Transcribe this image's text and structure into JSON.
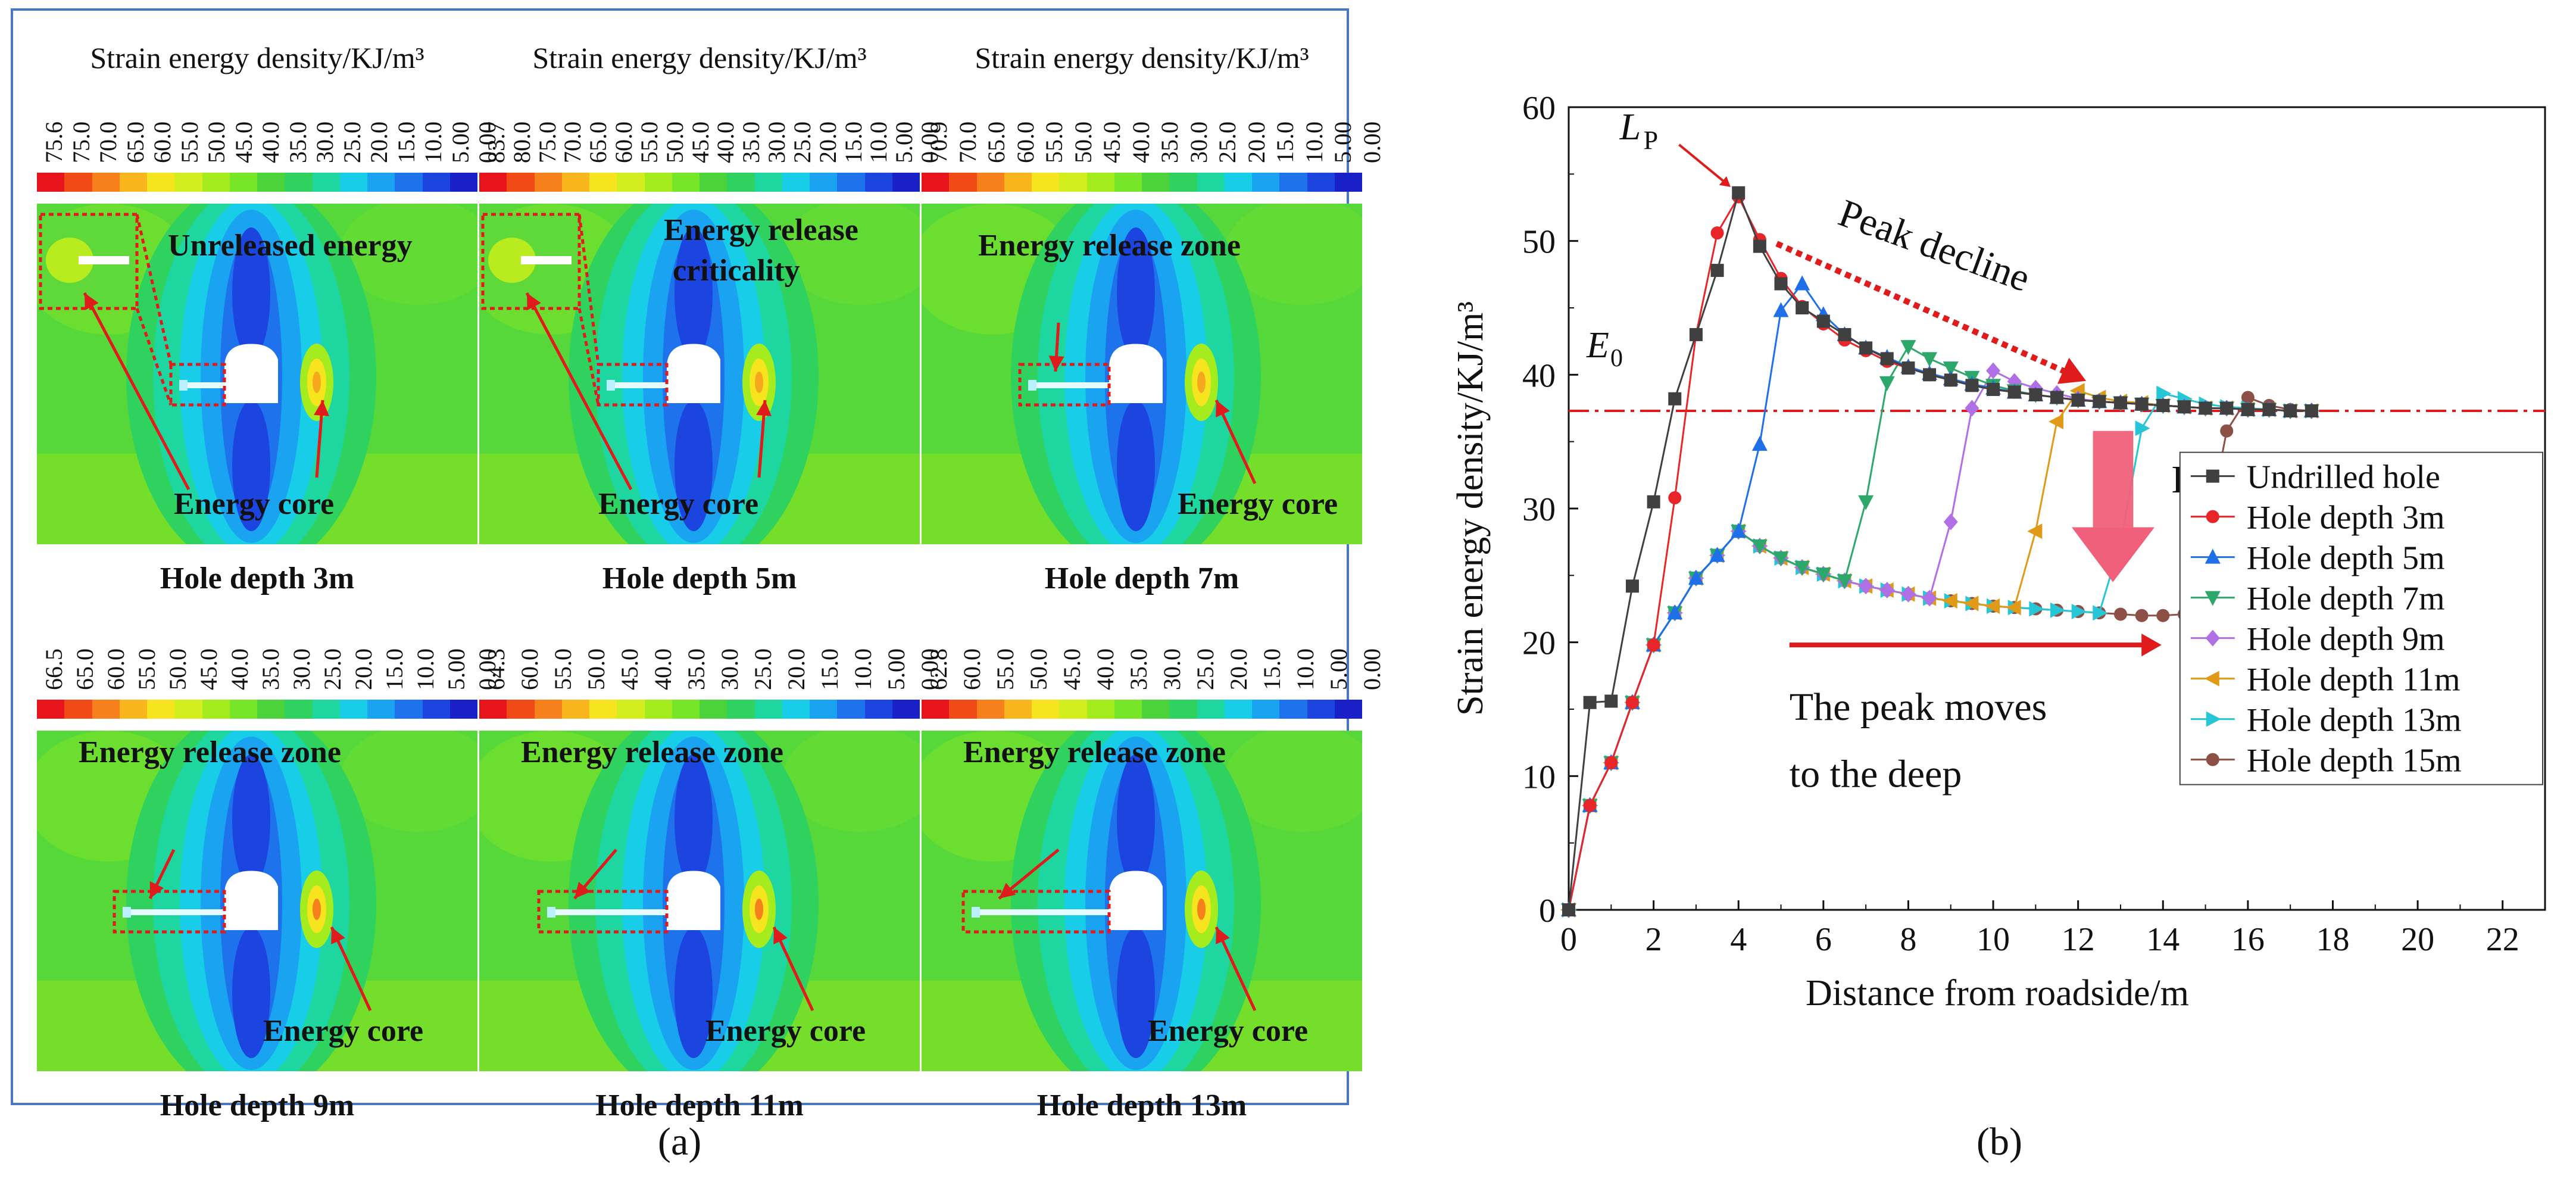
{
  "figure": {
    "panel_a_label": "(a)",
    "panel_b_label": "(b)"
  },
  "colors": {
    "frame_blue": "#4a78c0",
    "colorbar": [
      "#e8141c",
      "#f04a16",
      "#f5801c",
      "#f8b51e",
      "#f6e41e",
      "#d2ee1e",
      "#a5ec1e",
      "#78e628",
      "#4cd23a",
      "#2fd25e",
      "#1dd6a0",
      "#18cde8",
      "#1aa3f0",
      "#1e72ec",
      "#1c45e0",
      "#1a20c8"
    ],
    "series": [
      "#404040",
      "#e8262a",
      "#1f6fe8",
      "#2ea86a",
      "#b16fe6",
      "#e09a18",
      "#26c6d6",
      "#8c5046"
    ]
  },
  "panels": [
    {
      "colorbar_title": "Strain energy density/KJ/m³",
      "ticks": [
        "75.6",
        "75.0",
        "70.0",
        "65.0",
        "60.0",
        "55.0",
        "50.0",
        "45.0",
        "40.0",
        "35.0",
        "30.0",
        "25.0",
        "20.0",
        "15.0",
        "10.0",
        "5.00",
        "0.00"
      ],
      "annotation": "Unreleased energy",
      "core_label": "Energy core",
      "caption": "Hole depth 3m",
      "hole_depth_m": 3
    },
    {
      "colorbar_title": "Strain energy density/KJ/m³",
      "ticks": [
        "83.7",
        "80.0",
        "75.0",
        "70.0",
        "65.0",
        "60.0",
        "55.0",
        "50.0",
        "45.0",
        "40.0",
        "35.0",
        "30.0",
        "25.0",
        "20.0",
        "15.0",
        "10.0",
        "5.00",
        "0.00"
      ],
      "annotation": "Energy release",
      "annotation2": "criticality",
      "core_label": "Energy core",
      "caption": "Hole depth 5m",
      "hole_depth_m": 5
    },
    {
      "colorbar_title": "Strain energy density/KJ/m³",
      "ticks": [
        "70.9",
        "70.0",
        "65.0",
        "60.0",
        "55.0",
        "50.0",
        "45.0",
        "40.0",
        "35.0",
        "30.0",
        "25.0",
        "20.0",
        "15.0",
        "10.0",
        "5.00",
        "0.00"
      ],
      "annotation": "Energy release zone",
      "core_label": "Energy core",
      "caption": "Hole depth 7m",
      "hole_depth_m": 7
    },
    {
      "colorbar_title": "",
      "ticks": [
        "66.5",
        "65.0",
        "60.0",
        "55.0",
        "50.0",
        "45.0",
        "40.0",
        "35.0",
        "30.0",
        "25.0",
        "20.0",
        "15.0",
        "10.0",
        "5.00",
        "0.00"
      ],
      "annotation": "Energy release zone",
      "core_label": "Energy core",
      "caption": "Hole depth 9m",
      "hole_depth_m": 9
    },
    {
      "colorbar_title": "",
      "ticks": [
        "64.3",
        "60.0",
        "55.0",
        "50.0",
        "45.0",
        "40.0",
        "35.0",
        "30.0",
        "25.0",
        "20.0",
        "15.0",
        "10.0",
        "5.00",
        "0.00"
      ],
      "annotation": "Energy release zone",
      "core_label": "Energy core",
      "caption": "Hole depth 11m",
      "hole_depth_m": 11
    },
    {
      "colorbar_title": "",
      "ticks": [
        "62.8",
        "60.0",
        "55.0",
        "50.0",
        "45.0",
        "40.0",
        "35.0",
        "30.0",
        "25.0",
        "20.0",
        "15.0",
        "10.0",
        "5.00",
        "0.00"
      ],
      "annotation": "Energy release zone",
      "core_label": "Energy core",
      "caption": "Hole depth 13m",
      "hole_depth_m": 13
    }
  ],
  "chart_data": {
    "type": "line",
    "title": "",
    "xlabel": "Distance from roadside/m",
    "ylabel": "Strain energy density/KJ/m³",
    "xlim": [
      0,
      23
    ],
    "ylim": [
      0,
      60
    ],
    "xticks": [
      0,
      2,
      4,
      6,
      8,
      10,
      12,
      14,
      16,
      18,
      20,
      22
    ],
    "yticks": [
      0,
      10,
      20,
      30,
      40,
      50,
      60
    ],
    "legend_position": "bottom-right",
    "reference_line": {
      "label": "E",
      "subscript": "0",
      "y": 37.3
    },
    "peak_label": {
      "label": "L",
      "subscript": "P",
      "x": 4.0,
      "y": 53.6
    },
    "annotations": {
      "peak_decline": "Peak decline",
      "energy_release": "Energy release",
      "peak_moves_1": "The peak moves",
      "peak_moves_2": "to the deep"
    },
    "series": [
      {
        "name": "Undrilled hole",
        "marker": "square",
        "x": [
          0,
          0.5,
          1,
          1.5,
          2,
          2.5,
          3,
          3.5,
          4,
          4.5,
          5,
          5.5,
          6,
          6.5,
          7,
          7.5,
          8,
          8.5,
          9,
          9.5,
          10,
          10.5,
          11,
          11.5,
          12,
          12.5,
          13,
          13.5,
          14,
          14.5,
          15,
          15.5,
          16,
          16.5,
          17,
          17.5
        ],
        "y": [
          0,
          15.5,
          15.6,
          24.2,
          30.5,
          38.2,
          43,
          47.8,
          53.6,
          49.6,
          46.8,
          45,
          44,
          43,
          42,
          41.2,
          40.5,
          40,
          39.6,
          39.2,
          38.9,
          38.7,
          38.5,
          38.3,
          38.1,
          38,
          37.9,
          37.8,
          37.7,
          37.6,
          37.5,
          37.5,
          37.4,
          37.4,
          37.3,
          37.3
        ]
      },
      {
        "name": "Hole depth 3m",
        "marker": "circle",
        "x": [
          0,
          0.5,
          1,
          1.5,
          2,
          2.5,
          3,
          3.5,
          4,
          4.5,
          5,
          5.5,
          6,
          6.5,
          7,
          7.5,
          8,
          8.5,
          9,
          9.5,
          10,
          10.5,
          11,
          11.5,
          12,
          12.5,
          13,
          13.5,
          14,
          14.5,
          15,
          15.5,
          16,
          16.5,
          17,
          17.5
        ],
        "y": [
          0,
          7.8,
          11,
          15.5,
          19.8,
          30.8,
          43,
          50.6,
          53.3,
          50.1,
          47.2,
          45.1,
          43.8,
          42.6,
          41.8,
          41,
          40.5,
          40,
          39.6,
          39.2,
          38.9,
          38.7,
          38.5,
          38.3,
          38.1,
          38,
          37.9,
          37.8,
          37.7,
          37.6,
          37.5,
          37.5,
          37.4,
          37.4,
          37.3,
          37.3
        ]
      },
      {
        "name": "Hole depth 5m",
        "marker": "triangle-up",
        "x": [
          0,
          0.5,
          1,
          1.5,
          2,
          2.5,
          3,
          3.5,
          4,
          4.5,
          5,
          5.5,
          6,
          6.5,
          7,
          7.5,
          8,
          8.5,
          9,
          9.5,
          10,
          10.5,
          11,
          11.5,
          12,
          12.5,
          13,
          13.5,
          14,
          14.5,
          15,
          15.5,
          16,
          16.5,
          17,
          17.5
        ],
        "y": [
          0,
          7.8,
          11,
          15.5,
          19.8,
          22.2,
          24.8,
          26.5,
          28.3,
          34.8,
          44.8,
          46.8,
          44.5,
          43,
          42,
          41.3,
          40.6,
          40.1,
          39.7,
          39.3,
          39,
          38.7,
          38.5,
          38.3,
          38.1,
          38,
          37.9,
          37.8,
          37.7,
          37.6,
          37.5,
          37.5,
          37.4,
          37.4,
          37.3,
          37.3
        ]
      },
      {
        "name": "Hole depth 7m",
        "marker": "triangle-down",
        "x": [
          0,
          0.5,
          1,
          1.5,
          2,
          2.5,
          3,
          3.5,
          4,
          4.5,
          5,
          5.5,
          6,
          6.5,
          7,
          7.5,
          8,
          8.5,
          9,
          9.5,
          10,
          10.5,
          11,
          11.5,
          12,
          12.5,
          13,
          13.5,
          14,
          14.5,
          15,
          15.5,
          16,
          16.5,
          17,
          17.5
        ],
        "y": [
          0,
          7.8,
          11,
          15.5,
          19.8,
          22.2,
          24.8,
          26.5,
          28.3,
          27.2,
          26.3,
          25.6,
          25.1,
          24.6,
          30.5,
          39.4,
          42.1,
          41.2,
          40.5,
          39.8,
          39.2,
          38.8,
          38.5,
          38.3,
          38.1,
          38,
          37.9,
          37.8,
          37.7,
          37.6,
          37.5,
          37.5,
          37.4,
          37.4,
          37.3,
          37.3
        ]
      },
      {
        "name": "Hole depth 9m",
        "marker": "diamond",
        "x": [
          0,
          0.5,
          1,
          1.5,
          2,
          2.5,
          3,
          3.5,
          4,
          4.5,
          5,
          5.5,
          6,
          6.5,
          7,
          7.5,
          8,
          8.5,
          9,
          9.5,
          10,
          10.5,
          11,
          11.5,
          12,
          12.5,
          13,
          13.5,
          14,
          14.5,
          15,
          15.5,
          16,
          16.5,
          17,
          17.5
        ],
        "y": [
          0,
          7.8,
          11,
          15.5,
          19.8,
          22.2,
          24.8,
          26.5,
          28.3,
          27.2,
          26.3,
          25.6,
          25.1,
          24.6,
          24.2,
          23.9,
          23.6,
          23.3,
          29,
          37.5,
          40.3,
          39.5,
          39,
          38.6,
          38.2,
          38,
          37.9,
          37.8,
          37.7,
          37.6,
          37.5,
          37.5,
          37.4,
          37.4,
          37.3,
          37.3
        ]
      },
      {
        "name": "Hole depth 11m",
        "marker": "triangle-left",
        "x": [
          0,
          0.5,
          1,
          1.5,
          2,
          2.5,
          3,
          3.5,
          4,
          4.5,
          5,
          5.5,
          6,
          6.5,
          7,
          7.5,
          8,
          8.5,
          9,
          9.5,
          10,
          10.5,
          11,
          11.5,
          12,
          12.5,
          13,
          13.5,
          14,
          14.5,
          15,
          15.5,
          16,
          16.5,
          17,
          17.5
        ],
        "y": [
          0,
          7.8,
          11,
          15.5,
          19.8,
          22.2,
          24.8,
          26.5,
          28.3,
          27.2,
          26.3,
          25.6,
          25.1,
          24.6,
          24.2,
          23.9,
          23.6,
          23.3,
          23.1,
          22.9,
          22.7,
          22.6,
          28.3,
          36.5,
          38.8,
          38.3,
          38,
          37.9,
          37.7,
          37.6,
          37.5,
          37.5,
          37.4,
          37.4,
          37.3,
          37.3
        ]
      },
      {
        "name": "Hole depth 13m",
        "marker": "triangle-right",
        "x": [
          0,
          0.5,
          1,
          1.5,
          2,
          2.5,
          3,
          3.5,
          4,
          4.5,
          5,
          5.5,
          6,
          6.5,
          7,
          7.5,
          8,
          8.5,
          9,
          9.5,
          10,
          10.5,
          11,
          11.5,
          12,
          12.5,
          13,
          13.5,
          14,
          14.5,
          15,
          15.5,
          16,
          16.5,
          17,
          17.5
        ],
        "y": [
          0,
          7.8,
          11,
          15.5,
          19.8,
          22.2,
          24.8,
          26.5,
          28.3,
          27.2,
          26.3,
          25.6,
          25.1,
          24.6,
          24.2,
          23.9,
          23.6,
          23.3,
          23.1,
          22.9,
          22.7,
          22.6,
          22.5,
          22.4,
          22.3,
          22.2,
          27.5,
          36,
          38.6,
          38.2,
          37.8,
          37.6,
          37.5,
          37.4,
          37.3,
          37.3
        ]
      },
      {
        "name": "Hole depth 15m",
        "marker": "circle",
        "x": [
          0,
          0.5,
          1,
          1.5,
          2,
          2.5,
          3,
          3.5,
          4,
          4.5,
          5,
          5.5,
          6,
          6.5,
          7,
          7.5,
          8,
          8.5,
          9,
          9.5,
          10,
          10.5,
          11,
          11.5,
          12,
          12.5,
          13,
          13.5,
          14,
          14.5,
          15,
          15.5,
          16,
          16.5,
          17,
          17.5
        ],
        "y": [
          0,
          7.8,
          11,
          15.5,
          19.8,
          22.2,
          24.8,
          26.5,
          28.3,
          27.2,
          26.3,
          25.6,
          25.1,
          24.6,
          24.2,
          23.9,
          23.6,
          23.3,
          23.1,
          22.9,
          22.7,
          22.6,
          22.5,
          22.4,
          22.3,
          22.2,
          22.1,
          22,
          22,
          22.1,
          27.5,
          35.8,
          38.3,
          37.7,
          37.4,
          37.3
        ]
      }
    ]
  }
}
